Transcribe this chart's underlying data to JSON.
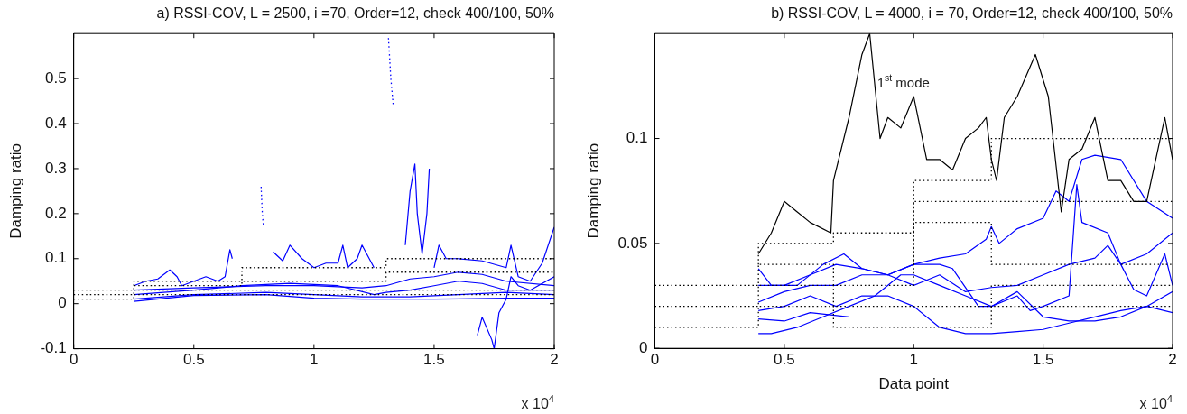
{
  "chart_data": [
    {
      "type": "line",
      "title": "a) RSSI-COV, L = 2500, i =70, Order=12, check 400/100, 50%",
      "ylabel": "Damping ratio",
      "xlim": [
        0,
        2
      ],
      "xticks": [
        0,
        0.5,
        1,
        1.5,
        2
      ],
      "ylim": [
        -0.1,
        0.6
      ],
      "yticks": [
        -0.1,
        0,
        0.1,
        0.2,
        0.3,
        0.4,
        0.5
      ],
      "grid": false,
      "legend": false,
      "marker": "none",
      "annotations": [
        "x 10$^{4}$"
      ],
      "series": [
        {
          "type": "step",
          "line_style": "dotted",
          "color": "#000000",
          "x": [
            0,
            0.25,
            0.7,
            1.3,
            1.6,
            2
          ],
          "values": [
            0.01,
            0.01,
            0.02,
            0.02,
            0.02,
            0.02
          ]
        },
        {
          "type": "step",
          "line_style": "dotted",
          "color": "#000000",
          "x": [
            0,
            0.25,
            0.7,
            1.3,
            1.6,
            2
          ],
          "values": [
            0.02,
            0.02,
            0.03,
            0.03,
            0.03,
            0.03
          ]
        },
        {
          "type": "step",
          "line_style": "dotted",
          "color": "#000000",
          "x": [
            0,
            0.25,
            0.7,
            1.3,
            1.6,
            2
          ],
          "values": [
            0.03,
            0.03,
            0.04,
            0.05,
            0.07,
            0.07
          ]
        },
        {
          "type": "step",
          "line_style": "dotted",
          "color": "#000000",
          "x": [
            0.25,
            0.7,
            1.3,
            1.6,
            2
          ],
          "values": [
            0.04,
            0.05,
            0.08,
            0.1,
            0.1
          ]
        },
        {
          "color": "#0000ff",
          "x": [
            0.25,
            0.3,
            0.35,
            0.4,
            0.43,
            0.45,
            0.5,
            0.55,
            0.6,
            0.63,
            0.65,
            0.66
          ],
          "values": [
            0.04,
            0.05,
            0.055,
            0.075,
            0.06,
            0.04,
            0.05,
            0.06,
            0.05,
            0.06,
            0.12,
            0.1
          ]
        },
        {
          "color": "#0000ff",
          "x": [
            0.83,
            0.87,
            0.9,
            0.95,
            1,
            1.05,
            1.1,
            1.12,
            1.14,
            1.18,
            1.2,
            1.25
          ],
          "values": [
            0.115,
            0.095,
            0.13,
            0.1,
            0.08,
            0.09,
            0.09,
            0.13,
            0.08,
            0.1,
            0.13,
            0.08
          ]
        },
        {
          "color": "#0000ff",
          "line_style": "dotted",
          "x": [
            0.78,
            0.785,
            0.79
          ],
          "values": [
            0.26,
            0.2,
            0.17
          ]
        },
        {
          "color": "#0000ff",
          "line_style": "dotted",
          "x": [
            1.31,
            1.32,
            1.33
          ],
          "values": [
            0.59,
            0.5,
            0.44
          ]
        },
        {
          "color": "#0000ff",
          "x": [
            1.38,
            1.4,
            1.42,
            1.43,
            1.45,
            1.47,
            1.48
          ],
          "values": [
            0.13,
            0.25,
            0.31,
            0.2,
            0.11,
            0.2,
            0.3
          ]
        },
        {
          "color": "#0000ff",
          "x": [
            1.5,
            1.52,
            1.55,
            1.6,
            1.7,
            1.8,
            1.82,
            1.85,
            1.9,
            1.95,
            2
          ],
          "values": [
            0.08,
            0.13,
            0.1,
            0.1,
            0.095,
            0.08,
            0.13,
            0.06,
            0.05,
            0.09,
            0.17
          ]
        },
        {
          "color": "#0000ff",
          "x": [
            1.68,
            1.7,
            1.74,
            1.75,
            1.77,
            1.8,
            1.82,
            1.85,
            1.9,
            2
          ],
          "values": [
            -0.07,
            -0.03,
            -0.08,
            -0.1,
            -0.02,
            0.01,
            0.06,
            0.04,
            0.03,
            0.06
          ]
        },
        {
          "color": "#0000ff",
          "x": [
            0.25,
            0.5,
            0.8,
            1,
            1.2,
            1.3,
            1.4,
            1.5,
            1.6,
            1.7,
            1.8,
            2
          ],
          "values": [
            0.03,
            0.035,
            0.04,
            0.04,
            0.035,
            0.04,
            0.055,
            0.06,
            0.07,
            0.065,
            0.05,
            0.04
          ]
        },
        {
          "color": "#0000ff",
          "x": [
            0.25,
            0.5,
            0.7,
            0.9,
            1.1,
            1.25,
            1.3,
            1.4,
            1.5,
            1.6,
            1.7,
            1.8,
            2
          ],
          "values": [
            0.02,
            0.03,
            0.04,
            0.045,
            0.04,
            0.02,
            0.025,
            0.03,
            0.04,
            0.05,
            0.045,
            0.03,
            0.03
          ]
        },
        {
          "color": "#0000ff",
          "x": [
            0.25,
            0.5,
            0.8,
            1,
            1.2,
            1.4,
            1.6,
            1.8,
            2
          ],
          "values": [
            0.01,
            0.02,
            0.025,
            0.02,
            0.015,
            0.015,
            0.02,
            0.025,
            0.02
          ]
        },
        {
          "color": "#0000ff",
          "x": [
            0.25,
            0.5,
            0.8,
            1,
            1.2,
            1.5,
            1.8,
            2
          ],
          "values": [
            0.005,
            0.018,
            0.02,
            0.012,
            0.01,
            0.01,
            0.012,
            0.012
          ]
        }
      ]
    },
    {
      "type": "line",
      "title": "b) RSSI-COV, L = 4000, i = 70, Order=12, check 400/100, 50%",
      "xlabel": "Data point",
      "ylabel": "Damping ratio",
      "xlim": [
        0,
        2
      ],
      "xticks": [
        0,
        0.5,
        1,
        1.5,
        2
      ],
      "ylim": [
        0,
        0.15
      ],
      "yticks": [
        0,
        0.05,
        0.1
      ],
      "grid": false,
      "legend": false,
      "marker": "none",
      "annotations": [
        "1$^{st}$ mode",
        "x 10$^{4}$"
      ],
      "series": [
        {
          "type": "step",
          "line_style": "dotted",
          "color": "#000000",
          "x": [
            0,
            0.4,
            0.69,
            1,
            1.3,
            1.6,
            2
          ],
          "values": [
            0.01,
            0.01,
            0.02,
            0.01,
            0.01,
            0.02,
            0.02
          ]
        },
        {
          "type": "step",
          "line_style": "dotted",
          "color": "#000000",
          "x": [
            0,
            0.4,
            0.69,
            1,
            1.3,
            1.6,
            2
          ],
          "values": [
            0.02,
            0.02,
            0.03,
            0.02,
            0.02,
            0.03,
            0.03
          ]
        },
        {
          "type": "step",
          "line_style": "dotted",
          "color": "#000000",
          "x": [
            0,
            0.4,
            0.69,
            1,
            1.3,
            1.6,
            2
          ],
          "values": [
            0.03,
            0.03,
            0.04,
            0.03,
            0.06,
            0.04,
            0.04
          ]
        },
        {
          "type": "step",
          "line_style": "dotted",
          "color": "#000000",
          "x": [
            0.4,
            0.69,
            1,
            1.3,
            1.6,
            2
          ],
          "values": [
            0.04,
            0.05,
            0.055,
            0.07,
            0.07,
            0.07
          ]
        },
        {
          "type": "step",
          "line_style": "dotted",
          "color": "#000000",
          "x": [
            1,
            1.3,
            1.6,
            2
          ],
          "values": [
            0.04,
            0.08,
            0.1,
            0.1
          ]
        },
        {
          "color": "#000000",
          "x": [
            0.4,
            0.45,
            0.5,
            0.55,
            0.6,
            0.68,
            0.69,
            0.75,
            0.8,
            0.83,
            0.87,
            0.9,
            0.95,
            1,
            1.05,
            1.1,
            1.15,
            1.2,
            1.25,
            1.28,
            1.3,
            1.32,
            1.35,
            1.4,
            1.47,
            1.52,
            1.57,
            1.6,
            1.65,
            1.7,
            1.75,
            1.8,
            1.85,
            1.9,
            1.97,
            2
          ],
          "values": [
            0.045,
            0.055,
            0.07,
            0.065,
            0.06,
            0.055,
            0.08,
            0.11,
            0.14,
            0.15,
            0.1,
            0.11,
            0.105,
            0.12,
            0.09,
            0.09,
            0.085,
            0.1,
            0.105,
            0.11,
            0.09,
            0.08,
            0.11,
            0.12,
            0.14,
            0.12,
            0.065,
            0.09,
            0.095,
            0.11,
            0.08,
            0.08,
            0.07,
            0.07,
            0.11,
            0.09
          ]
        },
        {
          "color": "#0000ff",
          "x": [
            0.4,
            0.5,
            0.6,
            0.7,
            0.8,
            0.9,
            1,
            1.1,
            1.2,
            1.28,
            1.3,
            1.33,
            1.4,
            1.5,
            1.55,
            1.6,
            1.65,
            1.7,
            1.8,
            1.9,
            2
          ],
          "values": [
            0.03,
            0.03,
            0.035,
            0.04,
            0.038,
            0.035,
            0.04,
            0.043,
            0.045,
            0.052,
            0.058,
            0.05,
            0.057,
            0.062,
            0.075,
            0.07,
            0.09,
            0.092,
            0.09,
            0.07,
            0.062
          ]
        },
        {
          "color": "#0000ff",
          "x": [
            0.4,
            0.45,
            0.55,
            0.65,
            0.73,
            0.8,
            0.9,
            1,
            1.1,
            1.2,
            1.3,
            1.4,
            1.5,
            1.6,
            1.7,
            1.75,
            1.8,
            1.9,
            2
          ],
          "values": [
            0.038,
            0.03,
            0.03,
            0.04,
            0.045,
            0.038,
            0.035,
            0.03,
            0.035,
            0.027,
            0.029,
            0.03,
            0.035,
            0.04,
            0.043,
            0.049,
            0.04,
            0.045,
            0.055
          ]
        },
        {
          "color": "#0000ff",
          "x": [
            0.4,
            0.5,
            0.6,
            0.7,
            0.8,
            0.9,
            1,
            1.1,
            1.15,
            1.25,
            1.3,
            1.4,
            1.45,
            1.5,
            1.6,
            1.63,
            1.65,
            1.75,
            1.8,
            1.85,
            1.9,
            1.97,
            2
          ],
          "values": [
            0.022,
            0.027,
            0.03,
            0.03,
            0.035,
            0.035,
            0.04,
            0.04,
            0.038,
            0.02,
            0.02,
            0.025,
            0.018,
            0.02,
            0.025,
            0.078,
            0.06,
            0.055,
            0.04,
            0.028,
            0.025,
            0.045,
            0.03
          ]
        },
        {
          "color": "#0000ff",
          "x": [
            0.4,
            0.5,
            0.6,
            0.7,
            0.8,
            0.9,
            1,
            1.1,
            1.2,
            1.3,
            1.4,
            1.5,
            1.6,
            1.7,
            1.8,
            1.9,
            2
          ],
          "values": [
            0.018,
            0.02,
            0.025,
            0.02,
            0.025,
            0.025,
            0.02,
            0.01,
            0.007,
            0.007,
            0.008,
            0.009,
            0.012,
            0.015,
            0.018,
            0.02,
            0.017
          ]
        },
        {
          "color": "#0000ff",
          "x": [
            0.4,
            0.45,
            0.55,
            0.65,
            0.75,
            0.85,
            0.95,
            1,
            1.1,
            1.2,
            1.3,
            1.4,
            1.5,
            1.6,
            1.7,
            1.8,
            1.9,
            2
          ],
          "values": [
            0.007,
            0.007,
            0.01,
            0.015,
            0.02,
            0.025,
            0.035,
            0.035,
            0.03,
            0.025,
            0.02,
            0.027,
            0.015,
            0.013,
            0.013,
            0.015,
            0.02,
            0.027
          ]
        },
        {
          "color": "#0000ff",
          "x": [
            0.4,
            0.5,
            0.6,
            0.75
          ],
          "values": [
            0.014,
            0.013,
            0.017,
            0.015
          ]
        }
      ]
    }
  ]
}
